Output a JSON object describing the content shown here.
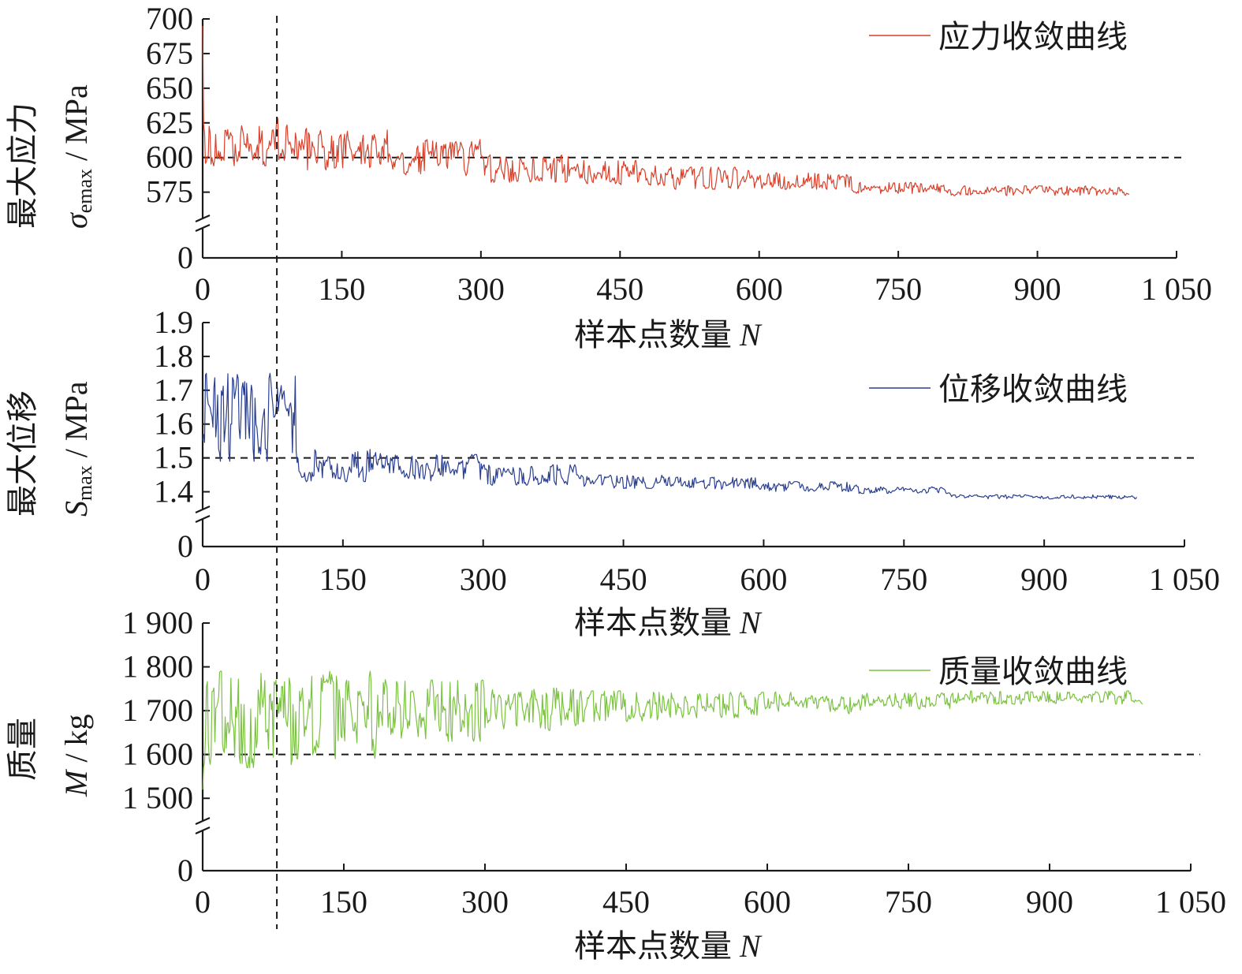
{
  "chart_data": [
    {
      "type": "line",
      "id": "stress",
      "ylabel_main": "最大应力",
      "ylabel_symbol": "σ",
      "ylabel_sub": "emax",
      "ylabel_unit": " / MPa",
      "xlabel_main": "样本点数量 ",
      "xlabel_symbol": "N",
      "xlim": [
        0,
        1050
      ],
      "ylim": [
        560,
        700
      ],
      "x_ticks": [
        "0",
        "150",
        "300",
        "450",
        "600",
        "750",
        "900",
        "1 050"
      ],
      "x_tick_values": [
        0,
        150,
        300,
        450,
        600,
        750,
        900,
        1050
      ],
      "y_ticks": [
        "575",
        "600",
        "625",
        "650",
        "675",
        "700"
      ],
      "y_tick_values": [
        575,
        600,
        625,
        650,
        675,
        700
      ],
      "y_zero_label": "0",
      "axis_break": true,
      "reference_line": 600,
      "legend": "应力收敛曲线",
      "color": "#d9412b",
      "series": [
        {
          "name": "应力收敛曲线",
          "segments": [
            {
              "x0": 0,
              "x1": 100,
              "center": 612,
              "amp": 18
            },
            {
              "x0": 100,
              "x1": 200,
              "center": 606,
              "amp": 15
            },
            {
              "x0": 200,
              "x1": 300,
              "center": 600,
              "amp": 13
            },
            {
              "x0": 300,
              "x1": 400,
              "center": 592,
              "amp": 10
            },
            {
              "x0": 400,
              "x1": 500,
              "center": 589,
              "amp": 9
            },
            {
              "x0": 500,
              "x1": 600,
              "center": 585,
              "amp": 8
            },
            {
              "x0": 600,
              "x1": 700,
              "center": 583,
              "amp": 6
            },
            {
              "x0": 700,
              "x1": 800,
              "center": 578,
              "amp": 4
            },
            {
              "x0": 800,
              "x1": 1000,
              "center": 576,
              "amp": 3.5
            }
          ],
          "start_value": 695
        }
      ]
    },
    {
      "type": "line",
      "id": "displacement",
      "ylabel_main": "最大位移",
      "ylabel_symbol": "S",
      "ylabel_sub": "max",
      "ylabel_unit": " / MPa",
      "xlabel_main": "样本点数量 ",
      "xlabel_symbol": "N",
      "xlim": [
        0,
        1050
      ],
      "ylim": [
        1.35,
        1.9
      ],
      "x_ticks": [
        "0",
        "150",
        "300",
        "450",
        "600",
        "750",
        "900",
        "1 050"
      ],
      "x_tick_values": [
        0,
        150,
        300,
        450,
        600,
        750,
        900,
        1050
      ],
      "y_ticks": [
        "1.4",
        "1.5",
        "1.6",
        "1.7",
        "1.8",
        "1.9"
      ],
      "y_tick_values": [
        1.4,
        1.5,
        1.6,
        1.7,
        1.8,
        1.9
      ],
      "y_zero_label": "0",
      "axis_break": true,
      "reference_line": 1.5,
      "legend": "位移收敛曲线",
      "color": "#2b3f8f",
      "series": [
        {
          "name": "位移收敛曲线",
          "segments": [
            {
              "x0": 0,
              "x1": 100,
              "center": 1.62,
              "amp": 0.13
            },
            {
              "x0": 100,
              "x1": 200,
              "center": 1.48,
              "amp": 0.05
            },
            {
              "x0": 200,
              "x1": 300,
              "center": 1.47,
              "amp": 0.04
            },
            {
              "x0": 300,
              "x1": 400,
              "center": 1.45,
              "amp": 0.03
            },
            {
              "x0": 400,
              "x1": 500,
              "center": 1.43,
              "amp": 0.02
            },
            {
              "x0": 500,
              "x1": 600,
              "center": 1.425,
              "amp": 0.018
            },
            {
              "x0": 600,
              "x1": 700,
              "center": 1.415,
              "amp": 0.015
            },
            {
              "x0": 700,
              "x1": 800,
              "center": 1.405,
              "amp": 0.01
            },
            {
              "x0": 800,
              "x1": 1000,
              "center": 1.385,
              "amp": 0.006
            }
          ],
          "start_value": 1.55
        }
      ]
    },
    {
      "type": "line",
      "id": "mass",
      "ylabel_main": "质量",
      "ylabel_symbol": "M",
      "ylabel_sub": "",
      "ylabel_unit": " / kg",
      "xlabel_main": "样本点数量 ",
      "xlabel_symbol": "N",
      "xlim": [
        0,
        1050
      ],
      "ylim": [
        1450,
        1900
      ],
      "x_ticks": [
        "0",
        "150",
        "300",
        "450",
        "600",
        "750",
        "900",
        "1 050"
      ],
      "x_tick_values": [
        0,
        150,
        300,
        450,
        600,
        750,
        900,
        1050
      ],
      "y_ticks": [
        "1 500",
        "1 600",
        "1 700",
        "1 800",
        "1 900"
      ],
      "y_tick_values": [
        1500,
        1600,
        1700,
        1800,
        1900
      ],
      "y_zero_label": "0",
      "axis_break": true,
      "reference_line": 1600,
      "legend": "质量收敛曲线",
      "color": "#7cc242",
      "series": [
        {
          "name": "质量收敛曲线",
          "segments": [
            {
              "x0": 0,
              "x1": 100,
              "center": 1680,
              "amp": 110
            },
            {
              "x0": 100,
              "x1": 200,
              "center": 1690,
              "amp": 100
            },
            {
              "x0": 200,
              "x1": 300,
              "center": 1700,
              "amp": 70
            },
            {
              "x0": 300,
              "x1": 400,
              "center": 1705,
              "amp": 50
            },
            {
              "x0": 400,
              "x1": 500,
              "center": 1710,
              "amp": 35
            },
            {
              "x0": 500,
              "x1": 600,
              "center": 1712,
              "amp": 30
            },
            {
              "x0": 600,
              "x1": 700,
              "center": 1718,
              "amp": 25
            },
            {
              "x0": 700,
              "x1": 800,
              "center": 1722,
              "amp": 18
            },
            {
              "x0": 800,
              "x1": 1000,
              "center": 1730,
              "amp": 15
            }
          ],
          "start_value": 1520
        }
      ]
    }
  ],
  "vertical_reference_x": 80
}
